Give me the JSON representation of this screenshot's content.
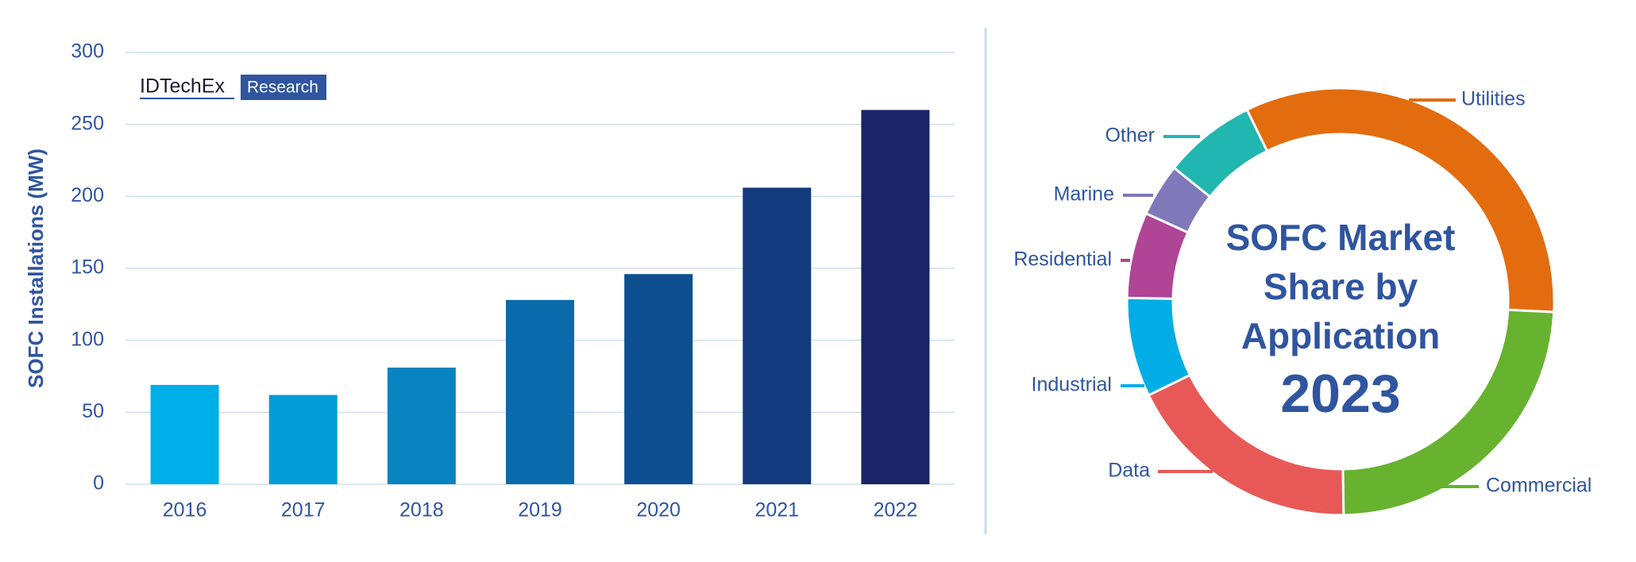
{
  "logo": {
    "name": "IDTechEx",
    "tag": "Research"
  },
  "chart_data": [
    {
      "type": "bar",
      "ylabel": "SOFC Installations (MW)",
      "categories": [
        "2016",
        "2017",
        "2018",
        "2019",
        "2020",
        "2021",
        "2022"
      ],
      "values": [
        69,
        62,
        81,
        128,
        146,
        206,
        260
      ],
      "colors": [
        "#00aee8",
        "#039bd8",
        "#0883c0",
        "#0b6aab",
        "#0e4f8f",
        "#133a7c",
        "#1a2466"
      ],
      "ylim": [
        0,
        300
      ],
      "yticks": [
        0,
        50,
        100,
        150,
        200,
        250,
        300
      ],
      "grid": true
    },
    {
      "type": "donut",
      "title": "SOFC Market Share by Application",
      "subtitle": "2023",
      "categories": [
        "Utilities",
        "Commercial",
        "Data",
        "Industrial",
        "Residential",
        "Marine",
        "Other"
      ],
      "values": [
        33,
        24,
        18,
        7.5,
        6.5,
        4,
        7
      ],
      "colors": [
        "#e36c0f",
        "#67b22f",
        "#e85856",
        "#02ade6",
        "#b04596",
        "#7f79b9",
        "#22b6b0"
      ]
    }
  ]
}
